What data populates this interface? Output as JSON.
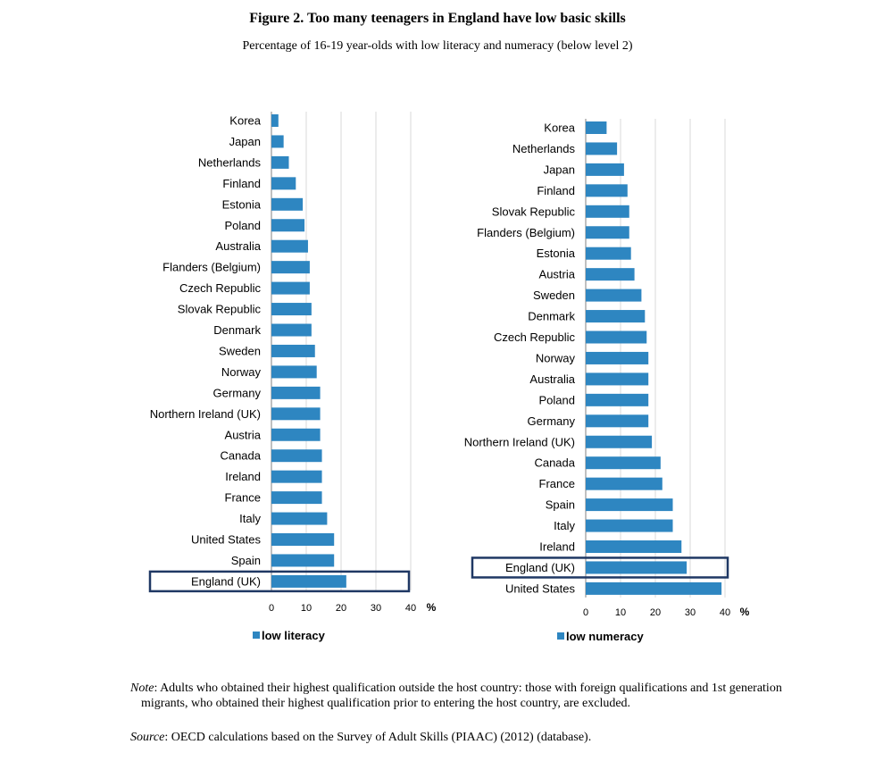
{
  "header": {
    "title": "Figure 2. Too many teenagers in England have low basic skills",
    "subtitle": "Percentage of 16-19 year-olds with low literacy and numeracy (below level 2)"
  },
  "footer": {
    "note_label": "Note",
    "note_text": ": Adults who obtained their highest qualification outside the host country: those with foreign qualifications and 1st generation migrants, who obtained their highest qualification prior to entering the host country, are excluded.",
    "source_label": "Source",
    "source_text": ": OECD calculations based on the Survey of Adult Skills (PIAAC) (2012) (database)."
  },
  "colors": {
    "bar": "#2e86c1",
    "highlight_border": "#1f3864",
    "grid": "#d9d9d9"
  },
  "chart_data": [
    {
      "type": "bar",
      "orientation": "horizontal",
      "legend": "low literacy",
      "legend_position": "bottom",
      "unit_label": "%",
      "xlim": [
        0,
        40
      ],
      "xticks": [
        0,
        10,
        20,
        30,
        40
      ],
      "grid": true,
      "highlight": "England (UK)",
      "categories": [
        "Korea",
        "Japan",
        "Netherlands",
        "Finland",
        "Estonia",
        "Poland",
        "Australia",
        "Flanders (Belgium)",
        "Czech Republic",
        "Slovak Republic",
        "Denmark",
        "Sweden",
        "Norway",
        "Germany",
        "Northern Ireland (UK)",
        "Austria",
        "Canada",
        "Ireland",
        "France",
        "Italy",
        "United States",
        "Spain",
        "England (UK)"
      ],
      "values": [
        2,
        3.5,
        5,
        7,
        9,
        9.5,
        10.5,
        11,
        11,
        11.5,
        11.5,
        12.5,
        13,
        14,
        14,
        14,
        14.5,
        14.5,
        14.5,
        16,
        18,
        18,
        21.5
      ]
    },
    {
      "type": "bar",
      "orientation": "horizontal",
      "legend": "low numeracy",
      "legend_position": "bottom",
      "unit_label": "%",
      "xlim": [
        0,
        40
      ],
      "xticks": [
        0,
        10,
        20,
        30,
        40
      ],
      "grid": true,
      "highlight": "England (UK)",
      "categories": [
        "Korea",
        "Netherlands",
        "Japan",
        "Finland",
        "Slovak Republic",
        "Flanders (Belgium)",
        "Estonia",
        "Austria",
        "Sweden",
        "Denmark",
        "Czech Republic",
        "Norway",
        "Australia",
        "Poland",
        "Germany",
        "Northern Ireland (UK)",
        "Canada",
        "France",
        "Spain",
        "Italy",
        "Ireland",
        "England (UK)",
        "United States"
      ],
      "values": [
        6,
        9,
        11,
        12,
        12.5,
        12.5,
        13,
        14,
        16,
        17,
        17.5,
        18,
        18,
        18,
        18,
        19,
        21.5,
        22,
        25,
        25,
        27.5,
        29,
        39
      ]
    }
  ]
}
